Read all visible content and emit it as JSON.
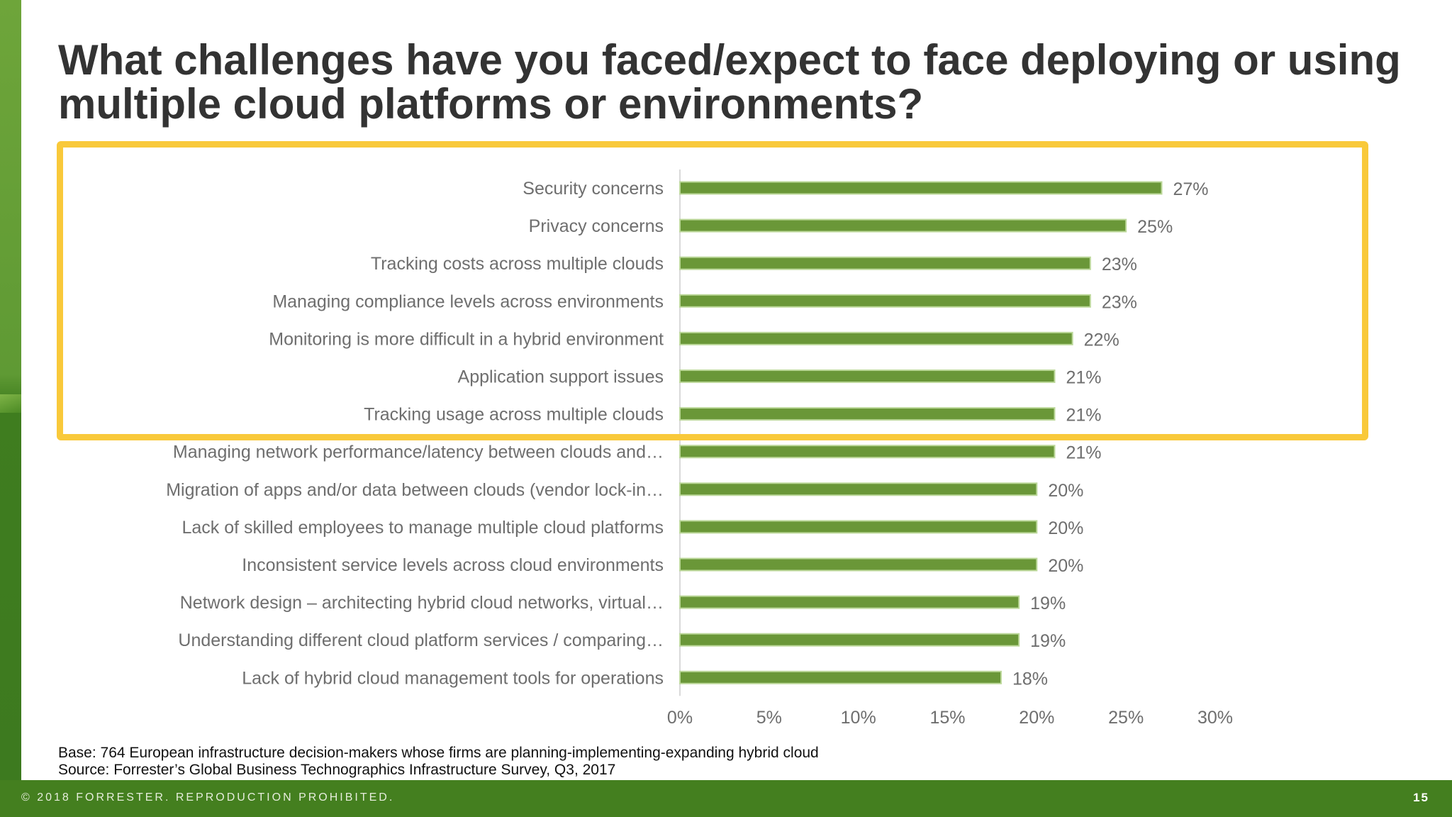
{
  "slide": {
    "title": "What challenges have you faced/expect to face deploying or using multiple cloud platforms or environments?",
    "base_note": "Base: 764 European infrastructure decision-makers whose firms are planning-implementing-expanding hybrid cloud",
    "source_note": "Source: Forrester’s Global Business Technographics Infrastructure Survey, Q3, 2017",
    "footer_copyright": "© 2018 FORRESTER. REPRODUCTION PROHIBITED.",
    "page_number": "15",
    "highlight_color": "#f9c93a",
    "brand_green": "#447f1f"
  },
  "chart_data": {
    "type": "bar",
    "orientation": "horizontal",
    "categories": [
      "Security concerns",
      "Privacy concerns",
      "Tracking costs across multiple clouds",
      "Managing compliance levels across environments",
      "Monitoring is more difficult in a hybrid environment",
      "Application support issues",
      "Tracking usage across multiple clouds",
      "Managing network performance/latency between clouds and…",
      "Migration of apps and/or data between clouds (vendor lock-in…",
      "Lack of skilled employees to manage multiple cloud platforms",
      "Inconsistent service levels across cloud environments",
      "Network design – architecting hybrid cloud networks, virtual…",
      "Understanding different cloud platform services / comparing…",
      "Lack of hybrid cloud management tools for operations"
    ],
    "values": [
      27,
      25,
      23,
      23,
      22,
      21,
      21,
      21,
      20,
      20,
      20,
      19,
      19,
      18
    ],
    "value_labels": [
      "27%",
      "25%",
      "23%",
      "23%",
      "22%",
      "21%",
      "21%",
      "21%",
      "20%",
      "20%",
      "20%",
      "19%",
      "19%",
      "18%"
    ],
    "xlim": [
      0,
      30
    ],
    "xticks": [
      0,
      5,
      10,
      15,
      20,
      25,
      30
    ],
    "xtick_labels": [
      "0%",
      "5%",
      "10%",
      "15%",
      "20%",
      "25%",
      "30%"
    ],
    "bar_color": "#6a9738",
    "grid": false,
    "highlighted_rows": 7
  }
}
